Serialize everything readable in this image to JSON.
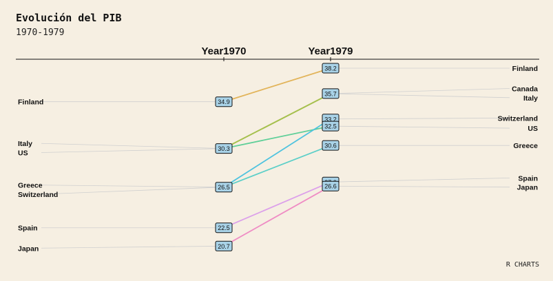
{
  "chart_data": {
    "type": "slope",
    "title": "Evolución del PIB",
    "subtitle": "1970-1979",
    "caption": "R CHARTS",
    "columns": [
      "Year1970",
      "Year1979"
    ],
    "series": [
      {
        "name": "Finland",
        "values": [
          34.9,
          38.2
        ],
        "color": "#e2b45a"
      },
      {
        "name": "Canada",
        "values": [
          30.3,
          35.7
        ],
        "color": "#a6c04e"
      },
      {
        "name": "Italy",
        "values": [
          30.3,
          35.7
        ],
        "color": "#a6c04e"
      },
      {
        "name": "US",
        "values": [
          30.3,
          32.5
        ],
        "color": "#5ecf98"
      },
      {
        "name": "Switzerland",
        "values": [
          26.5,
          33.2
        ],
        "color": "#4fc3df"
      },
      {
        "name": "Greece",
        "values": [
          26.5,
          30.6
        ],
        "color": "#5ccfc8"
      },
      {
        "name": "Spain",
        "values": [
          22.5,
          27.0
        ],
        "color": "#dca0ea"
      },
      {
        "name": "Japan",
        "values": [
          20.7,
          26.6
        ],
        "color": "#ef8cc4"
      }
    ],
    "left_labels": [
      {
        "text": "Finland",
        "value": 34.9
      },
      {
        "text": "Italy",
        "value": 30.8
      },
      {
        "text": "US",
        "value": 29.9
      },
      {
        "text": "Greece",
        "value": 26.7
      },
      {
        "text": "Switzerland",
        "value": 25.8
      },
      {
        "text": "Spain",
        "value": 22.5
      },
      {
        "text": "Japan",
        "value": 20.5
      }
    ],
    "right_labels": [
      {
        "text": "Finland",
        "value": 38.2
      },
      {
        "text": "Canada",
        "value": 36.2
      },
      {
        "text": "Italy",
        "value": 35.3
      },
      {
        "text": "Switzerland",
        "value": 33.3
      },
      {
        "text": "US",
        "value": 32.3
      },
      {
        "text": "Greece",
        "value": 30.6
      },
      {
        "text": "Spain",
        "value": 27.4
      },
      {
        "text": "Japan",
        "value": 26.5
      }
    ],
    "start_labels": [
      "34.9",
      "30.3",
      "26.5",
      "22.5",
      "20.7"
    ],
    "start_values": [
      34.9,
      30.3,
      26.5,
      22.5,
      20.7
    ],
    "end_labels": [
      "38.2",
      "35.7",
      "33.2",
      "32.5",
      "30.6",
      "27.0",
      "26.6"
    ],
    "end_values": [
      38.2,
      35.7,
      33.2,
      32.5,
      30.6,
      27.0,
      26.6
    ],
    "colors": {
      "background": "#f6efe2",
      "label_box": "#a9d3e8",
      "guide": "#cfcfcf"
    }
  }
}
